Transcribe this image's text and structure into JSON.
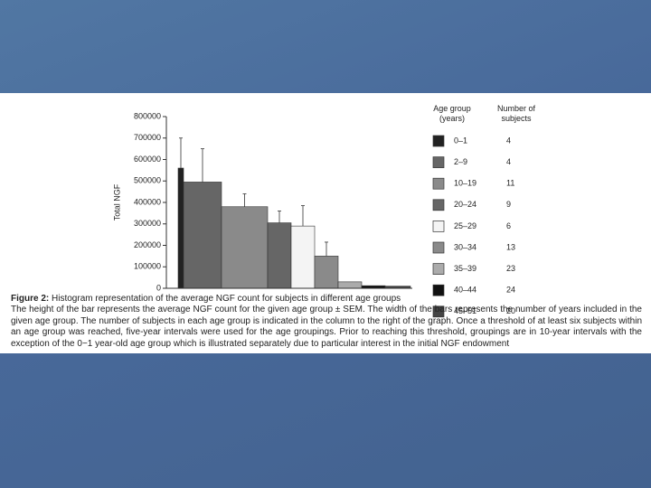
{
  "chart_data": {
    "type": "bar",
    "ylabel": "Total NGF",
    "categories": [
      "0–1",
      "2–9",
      "10–19",
      "20–24",
      "25–29",
      "30–34",
      "35–39",
      "40–44",
      "45–51"
    ],
    "values": [
      560000,
      495000,
      380000,
      305000,
      290000,
      150000,
      30000,
      12000,
      10000
    ],
    "errors": [
      140000,
      155000,
      60000,
      55000,
      95000,
      65000,
      0,
      0,
      0
    ],
    "colors": [
      "#222222",
      "#666666",
      "#8a8a8a",
      "#666666",
      "#f4f4f4",
      "#8a8a8a",
      "#ababab",
      "#111111",
      "#444444"
    ],
    "ylim": [
      0,
      800000
    ],
    "yticks": [
      0,
      100000,
      200000,
      300000,
      400000,
      500000,
      600000,
      700000,
      800000
    ],
    "legend_headers": [
      "Age group (years)",
      "Number of subjects"
    ],
    "subjects": [
      4,
      4,
      11,
      9,
      6,
      13,
      23,
      24,
      20
    ],
    "caption_label": "Figure 2:",
    "caption_title": "Histogram representation of the average NGF count for subjects in different age groups",
    "caption_text": "The height of the bar represents the average NGF count for the given age group ± SEM. The width of the bars represents the number of years included in the given age group. The number of subjects in each age group is indicated in the column to the right of the graph. Once a threshold of at least six subjects within an age group was reached, five-year intervals were used for the age groupings. Prior to reaching this threshold, groupings are in 10-year intervals with the exception of the 0−1 year-old age group which is illustrated separately due to particular interest in the initial NGF endowment"
  }
}
